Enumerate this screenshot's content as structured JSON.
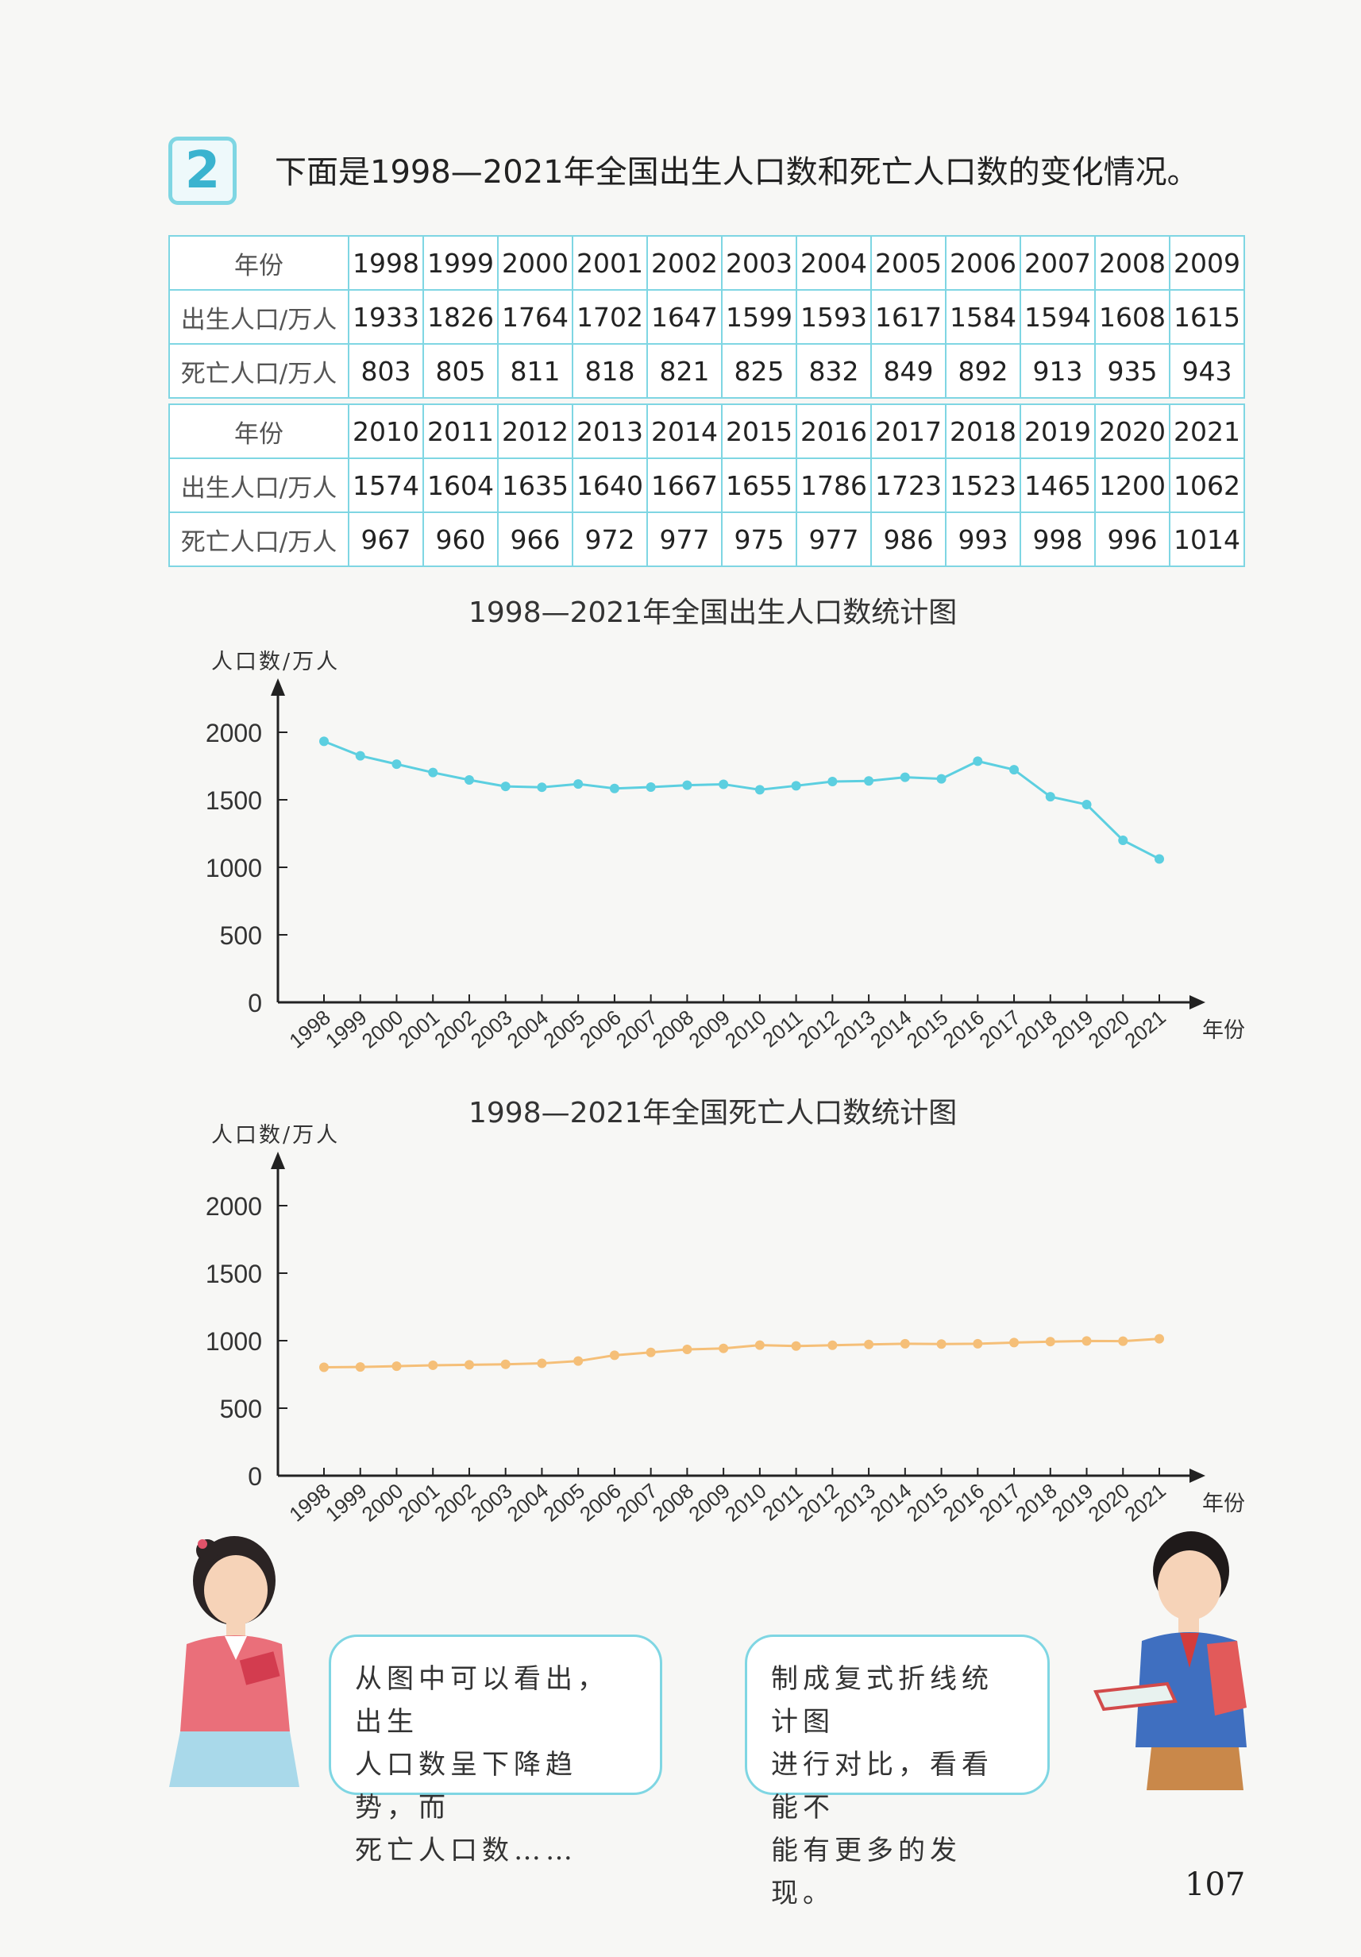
{
  "problem": {
    "number": "2",
    "intro": "下面是1998—2021年全国出生人口数和死亡人口数的变化情况。"
  },
  "table": {
    "row_label_year": "年份",
    "row_label_birth": "出生人口/万人",
    "row_label_death": "死亡人口/万人",
    "part1": {
      "years": [
        "1998",
        "1999",
        "2000",
        "2001",
        "2002",
        "2003",
        "2004",
        "2005",
        "2006",
        "2007",
        "2008",
        "2009"
      ],
      "births": [
        "1933",
        "1826",
        "1764",
        "1702",
        "1647",
        "1599",
        "1593",
        "1617",
        "1584",
        "1594",
        "1608",
        "1615"
      ],
      "deaths": [
        "803",
        "805",
        "811",
        "818",
        "821",
        "825",
        "832",
        "849",
        "892",
        "913",
        "935",
        "943"
      ]
    },
    "part2": {
      "years": [
        "2010",
        "2011",
        "2012",
        "2013",
        "2014",
        "2015",
        "2016",
        "2017",
        "2018",
        "2019",
        "2020",
        "2021"
      ],
      "births": [
        "1574",
        "1604",
        "1635",
        "1640",
        "1667",
        "1655",
        "1786",
        "1723",
        "1523",
        "1465",
        "1200",
        "1062"
      ],
      "deaths": [
        "967",
        "960",
        "966",
        "972",
        "977",
        "975",
        "977",
        "986",
        "993",
        "998",
        "996",
        "1014"
      ]
    }
  },
  "chart_data": [
    {
      "type": "line",
      "title": "1998—2021年全国出生人口数统计图",
      "ylabel": "人口数/万人",
      "xlabel": "年份",
      "ylim": [
        0,
        2000
      ],
      "yticks": [
        0,
        500,
        1000,
        1500,
        2000
      ],
      "x": [
        "1998",
        "1999",
        "2000",
        "2001",
        "2002",
        "2003",
        "2004",
        "2005",
        "2006",
        "2007",
        "2008",
        "2009",
        "2010",
        "2011",
        "2012",
        "2013",
        "2014",
        "2015",
        "2016",
        "2017",
        "2018",
        "2019",
        "2020",
        "2021"
      ],
      "values": [
        1933,
        1826,
        1764,
        1702,
        1647,
        1599,
        1593,
        1617,
        1584,
        1594,
        1608,
        1615,
        1574,
        1604,
        1635,
        1640,
        1667,
        1655,
        1786,
        1723,
        1523,
        1465,
        1200,
        1062
      ],
      "color": "#5ccfe0"
    },
    {
      "type": "line",
      "title": "1998—2021年全国死亡人口数统计图",
      "ylabel": "人口数/万人",
      "xlabel": "年份",
      "ylim": [
        0,
        2000
      ],
      "yticks": [
        0,
        500,
        1000,
        1500,
        2000
      ],
      "x": [
        "1998",
        "1999",
        "2000",
        "2001",
        "2002",
        "2003",
        "2004",
        "2005",
        "2006",
        "2007",
        "2008",
        "2009",
        "2010",
        "2011",
        "2012",
        "2013",
        "2014",
        "2015",
        "2016",
        "2017",
        "2018",
        "2019",
        "2020",
        "2021"
      ],
      "values": [
        803,
        805,
        811,
        818,
        821,
        825,
        832,
        849,
        892,
        913,
        935,
        943,
        967,
        960,
        966,
        972,
        977,
        975,
        977,
        986,
        993,
        998,
        996,
        1014
      ],
      "color": "#f5bf78"
    }
  ],
  "speech": {
    "girl_lines": [
      "从图中可以看出，出生",
      "人口数呈下降趋势，而",
      "死亡人口数……"
    ],
    "boy_lines": [
      "制成复式折线统计图",
      "进行对比，看看能不",
      "能有更多的发现。"
    ]
  },
  "page_number": "107"
}
